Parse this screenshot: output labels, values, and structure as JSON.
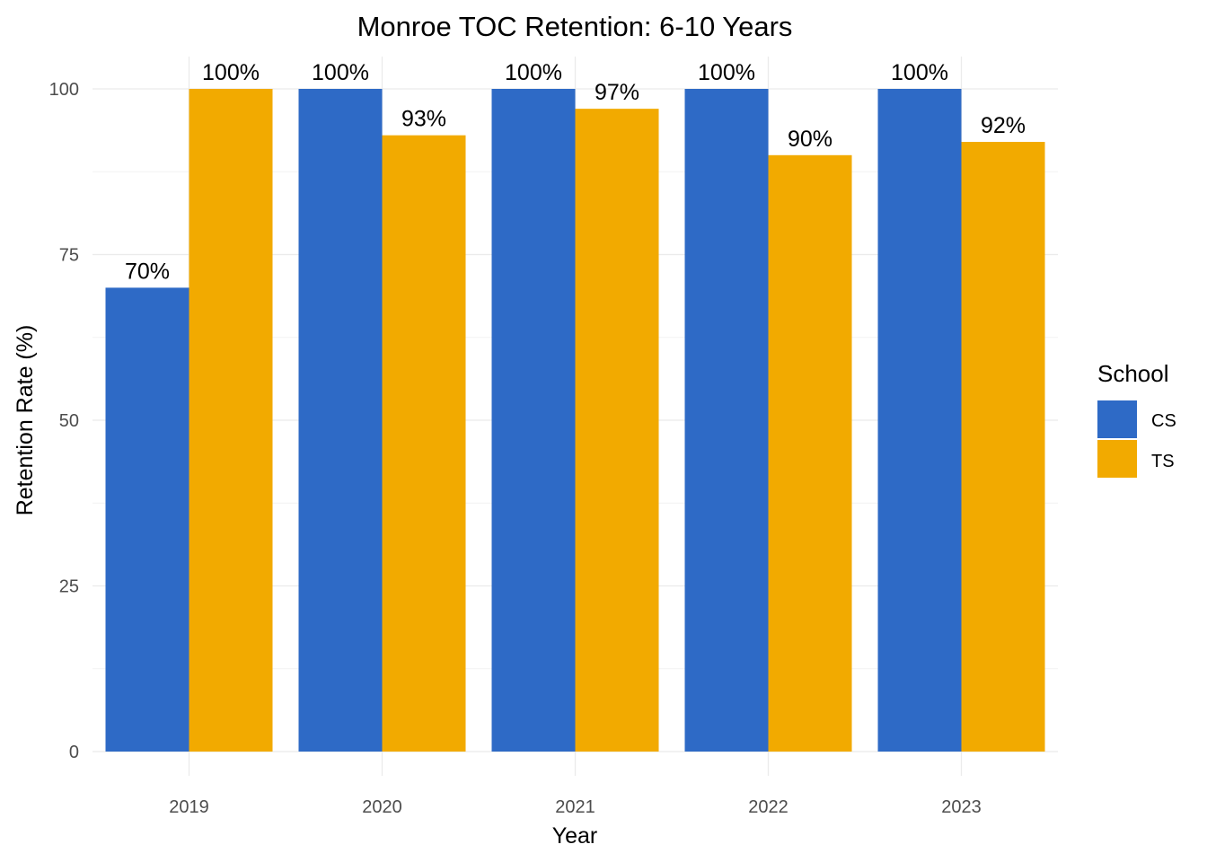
{
  "chart_data": {
    "type": "bar",
    "title": "Monroe TOC Retention: 6-10 Years",
    "xlabel": "Year",
    "ylabel": "Retention Rate (%)",
    "categories": [
      "2019",
      "2020",
      "2021",
      "2022",
      "2023"
    ],
    "series": [
      {
        "name": "CS",
        "color": "#2E6AC6",
        "values": [
          70,
          100,
          100,
          100,
          100
        ],
        "labels": [
          "70%",
          "100%",
          "100%",
          "100%",
          "100%"
        ]
      },
      {
        "name": "TS",
        "color": "#F2AA00",
        "values": [
          100,
          93,
          97,
          90,
          92
        ],
        "labels": [
          "100%",
          "93%",
          "97%",
          "90%",
          "92%"
        ]
      }
    ],
    "ylim": [
      0,
      100
    ],
    "yticks": [
      0,
      25,
      50,
      75,
      100
    ],
    "grid": true,
    "legend": {
      "title": "School",
      "position": "right"
    }
  }
}
